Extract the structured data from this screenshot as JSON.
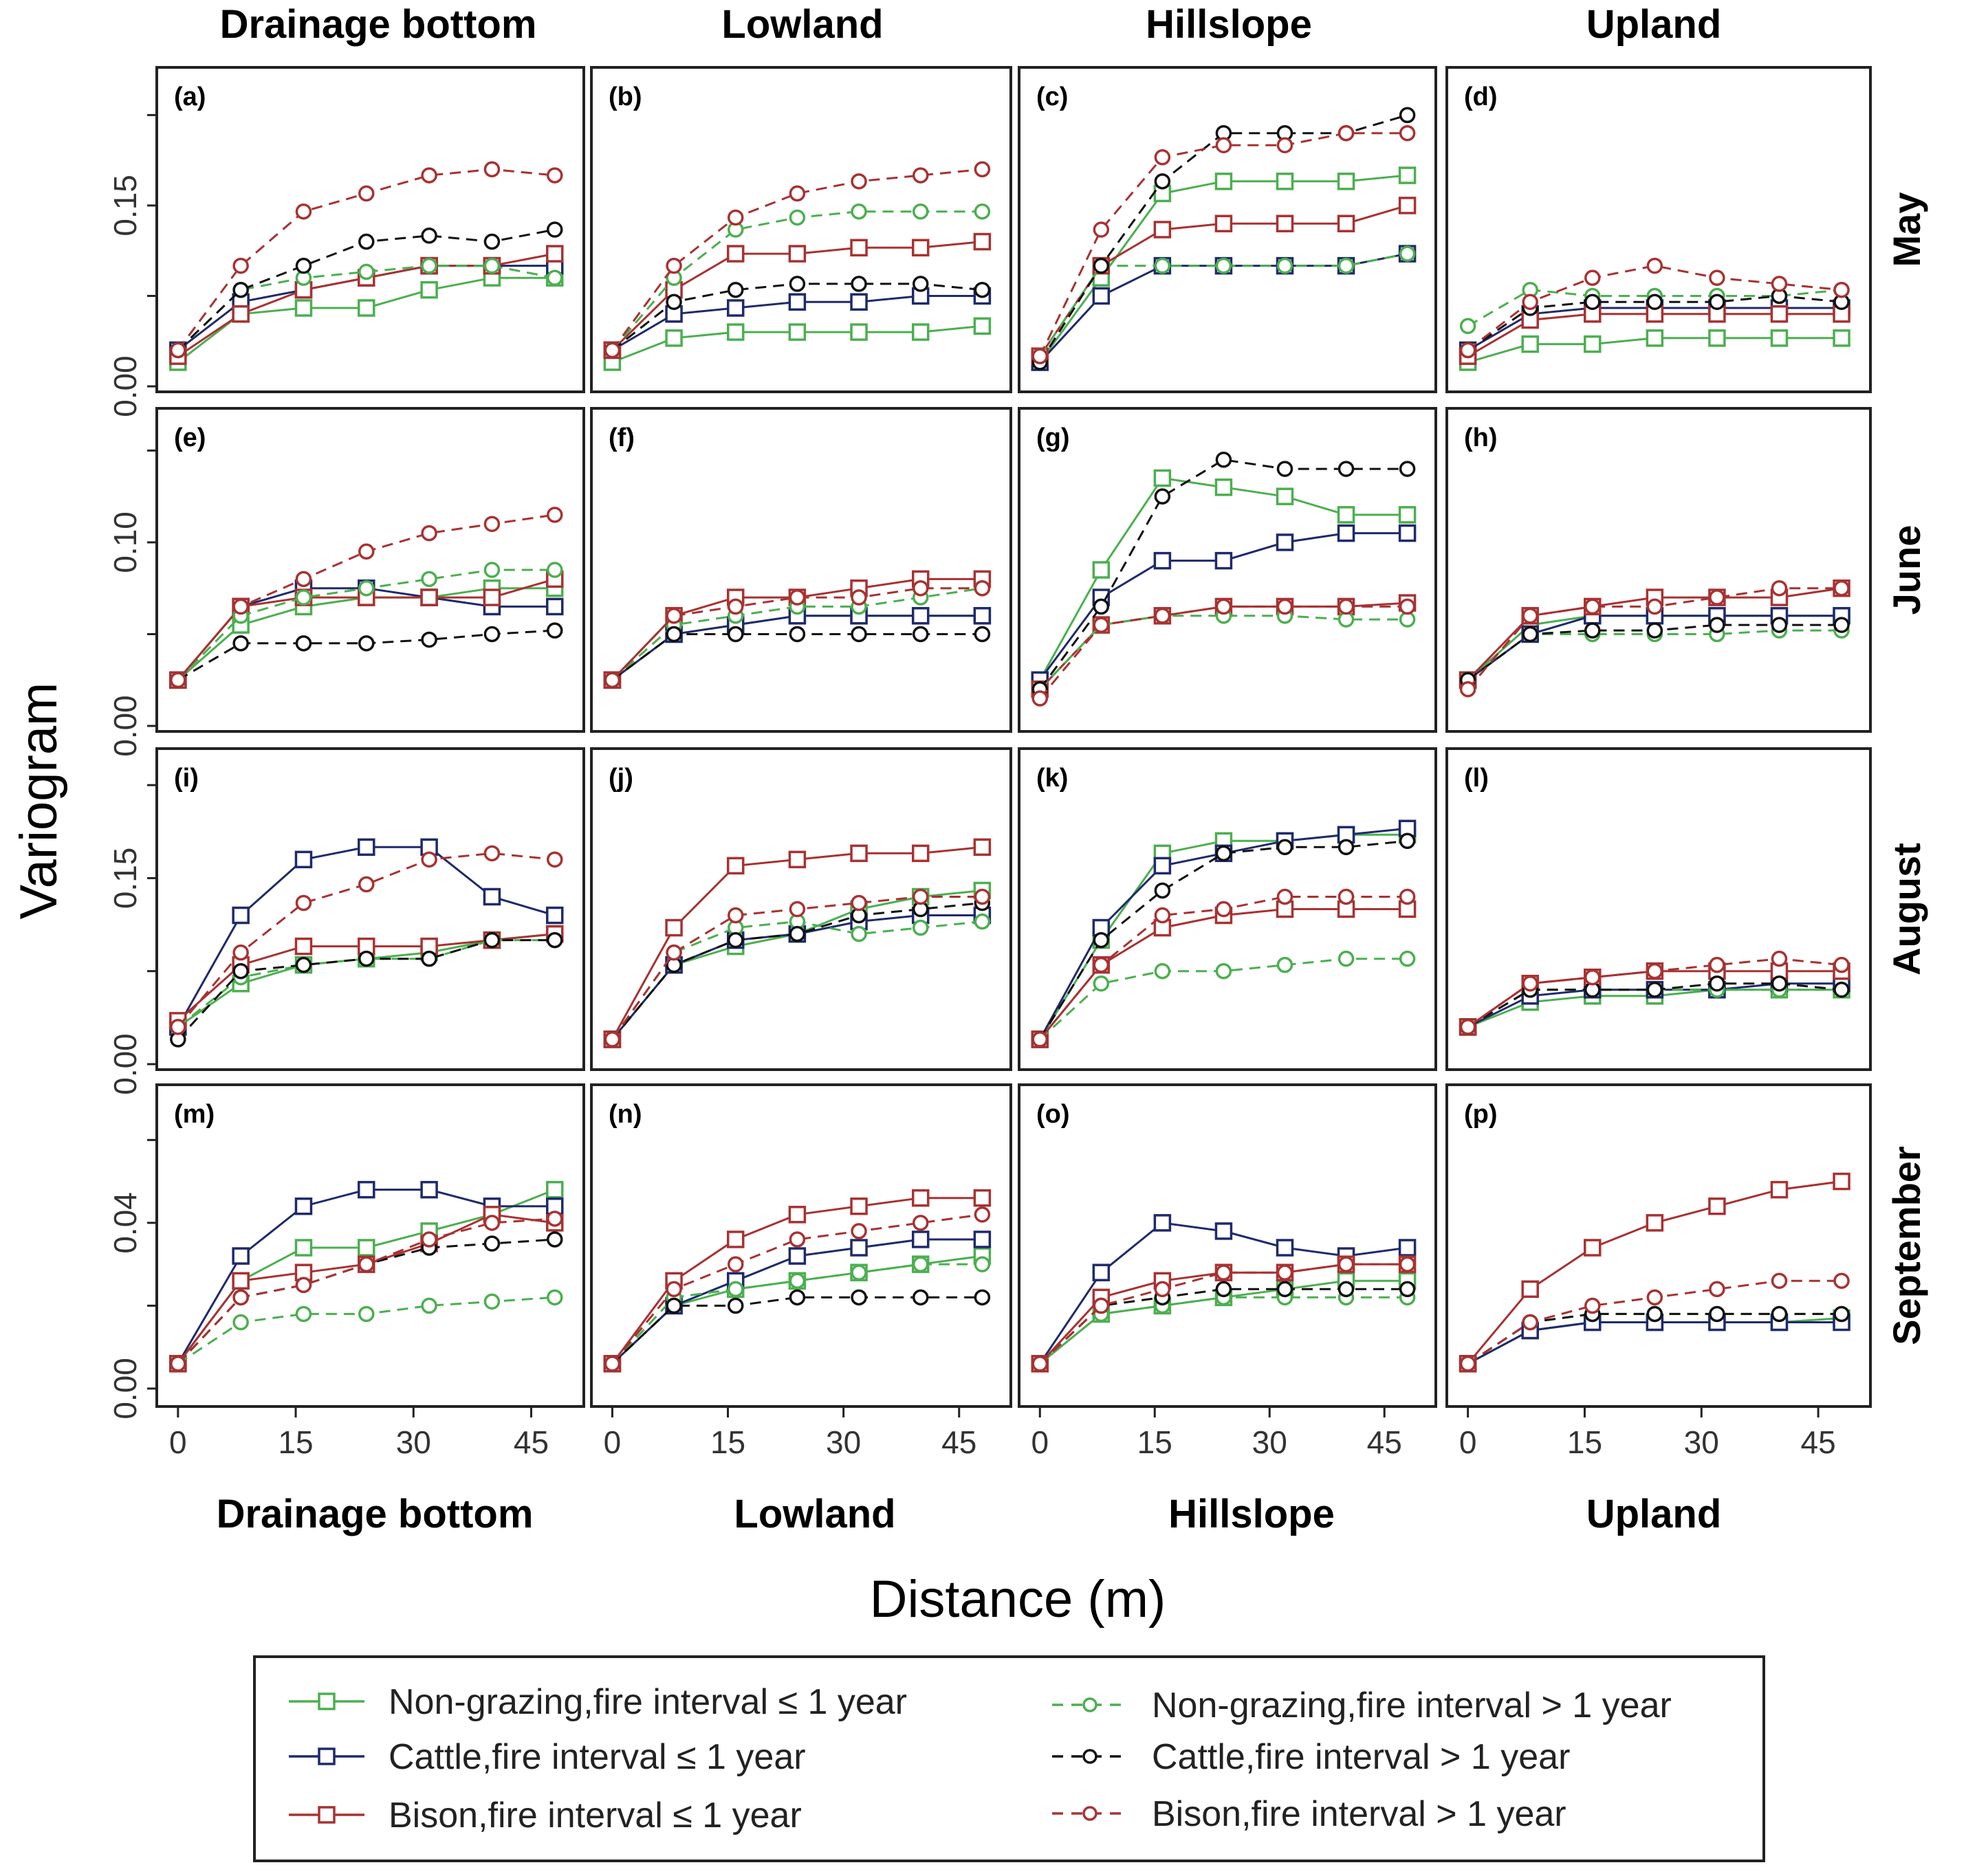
{
  "chart_data": {
    "type": "line",
    "title": "",
    "xlabel": "Distance (m)",
    "ylabel": "Variogram",
    "xlim": [
      -2,
      51
    ],
    "x_ticks": [
      "0",
      "15",
      "30",
      "45"
    ],
    "columns": [
      "Drainage bottom",
      "Lowland",
      "Hillslope",
      "Upland"
    ],
    "bottom_labels": [
      "Drainage bottom",
      "Lowland",
      "Hillslope",
      "Upland"
    ],
    "rows": [
      {
        "label": "May",
        "ylim": [
          0,
          0.26
        ],
        "y_ticks": [
          "0.00",
          "0.15"
        ]
      },
      {
        "label": "June",
        "ylim": [
          0,
          0.17
        ],
        "y_ticks": [
          "0.00",
          "0.10"
        ]
      },
      {
        "label": "August",
        "ylim": [
          0,
          0.25
        ],
        "y_ticks": [
          "0.00",
          "0.15"
        ]
      },
      {
        "label": "September",
        "ylim": [
          -0.003,
          0.072
        ],
        "y_ticks": [
          "0.00",
          "0.04"
        ]
      }
    ],
    "series_meta": [
      {
        "name": "Non-grazing,fire interval  ≤  1 year",
        "color": "#4caf50",
        "dash": "solid",
        "marker": "square"
      },
      {
        "name": "Cattle,fire interval  ≤  1 year",
        "color": "#1f2a6b",
        "dash": "solid",
        "marker": "square"
      },
      {
        "name": "Bison,fire interval  ≤  1 year",
        "color": "#a83232",
        "dash": "solid",
        "marker": "square"
      },
      {
        "name": "Non-grazing,fire interval > 1 year",
        "color": "#4caf50",
        "dash": "dashed",
        "marker": "circle"
      },
      {
        "name": "Cattle,fire interval > 1 year",
        "color": "#111111",
        "dash": "dashed",
        "marker": "circle"
      },
      {
        "name": "Bison,fire interval > 1 year",
        "color": "#a83232",
        "dash": "dashed",
        "marker": "circle"
      }
    ],
    "x": [
      0,
      8,
      16,
      24,
      32,
      40,
      48
    ],
    "panels": [
      {
        "label": "(a)",
        "series": [
          [
            0.02,
            0.06,
            0.065,
            0.065,
            0.08,
            0.09,
            0.09
          ],
          [
            0.03,
            0.07,
            0.08,
            0.09,
            0.1,
            0.1,
            0.1
          ],
          [
            0.025,
            0.06,
            0.08,
            0.09,
            0.1,
            0.1,
            0.11
          ],
          [
            0.03,
            0.08,
            0.09,
            0.095,
            0.1,
            0.1,
            0.09
          ],
          [
            0.03,
            0.08,
            0.1,
            0.12,
            0.125,
            0.12,
            0.13
          ],
          [
            0.03,
            0.1,
            0.145,
            0.16,
            0.175,
            0.18,
            0.175
          ]
        ]
      },
      {
        "label": "(b)",
        "series": [
          [
            0.02,
            0.04,
            0.045,
            0.045,
            0.045,
            0.045,
            0.05
          ],
          [
            0.03,
            0.06,
            0.065,
            0.07,
            0.07,
            0.075,
            0.075
          ],
          [
            0.03,
            0.08,
            0.11,
            0.11,
            0.115,
            0.115,
            0.12
          ],
          [
            0.03,
            0.09,
            0.13,
            0.14,
            0.145,
            0.145,
            0.145
          ],
          [
            0.03,
            0.07,
            0.08,
            0.085,
            0.085,
            0.085,
            0.08
          ],
          [
            0.03,
            0.1,
            0.14,
            0.16,
            0.17,
            0.175,
            0.18
          ]
        ]
      },
      {
        "label": "(c)",
        "series": [
          [
            0.02,
            0.09,
            0.16,
            0.17,
            0.17,
            0.17,
            0.175
          ],
          [
            0.02,
            0.075,
            0.1,
            0.1,
            0.1,
            0.1,
            0.11
          ],
          [
            0.025,
            0.1,
            0.13,
            0.135,
            0.135,
            0.135,
            0.15
          ],
          [
            0.025,
            0.1,
            0.1,
            0.1,
            0.1,
            0.1,
            0.11
          ],
          [
            0.02,
            0.1,
            0.17,
            0.21,
            0.21,
            0.21,
            0.225
          ],
          [
            0.025,
            0.13,
            0.19,
            0.2,
            0.2,
            0.21,
            0.21
          ]
        ]
      },
      {
        "label": "(d)",
        "series": [
          [
            0.02,
            0.035,
            0.035,
            0.04,
            0.04,
            0.04,
            0.04
          ],
          [
            0.03,
            0.06,
            0.065,
            0.065,
            0.065,
            0.065,
            0.065
          ],
          [
            0.025,
            0.055,
            0.06,
            0.06,
            0.06,
            0.06,
            0.06
          ],
          [
            0.05,
            0.08,
            0.075,
            0.075,
            0.075,
            0.075,
            0.08
          ],
          [
            0.03,
            0.065,
            0.07,
            0.07,
            0.07,
            0.075,
            0.07
          ],
          [
            0.03,
            0.07,
            0.09,
            0.1,
            0.09,
            0.085,
            0.08
          ]
        ]
      },
      {
        "label": "(e)",
        "series": [
          [
            0.025,
            0.055,
            0.065,
            0.07,
            0.07,
            0.075,
            0.075
          ],
          [
            0.025,
            0.065,
            0.075,
            0.075,
            0.07,
            0.065,
            0.065
          ],
          [
            0.025,
            0.065,
            0.07,
            0.07,
            0.07,
            0.07,
            0.08
          ],
          [
            0.025,
            0.06,
            0.07,
            0.075,
            0.08,
            0.085,
            0.085
          ],
          [
            0.025,
            0.045,
            0.045,
            0.045,
            0.047,
            0.05,
            0.052
          ],
          [
            0.025,
            0.065,
            0.08,
            0.095,
            0.105,
            0.11,
            0.115
          ]
        ]
      },
      {
        "label": "(f)",
        "series": [
          [
            0.025,
            0.05,
            0.055,
            0.06,
            0.06,
            0.06,
            0.06
          ],
          [
            0.025,
            0.05,
            0.055,
            0.06,
            0.06,
            0.06,
            0.06
          ],
          [
            0.025,
            0.06,
            0.07,
            0.07,
            0.075,
            0.08,
            0.08
          ],
          [
            0.025,
            0.055,
            0.06,
            0.065,
            0.065,
            0.07,
            0.075
          ],
          [
            0.025,
            0.05,
            0.05,
            0.05,
            0.05,
            0.05,
            0.05
          ],
          [
            0.025,
            0.06,
            0.065,
            0.07,
            0.07,
            0.075,
            0.075
          ]
        ]
      },
      {
        "label": "(g)",
        "series": [
          [
            0.025,
            0.085,
            0.135,
            0.13,
            0.125,
            0.115,
            0.115
          ],
          [
            0.025,
            0.07,
            0.09,
            0.09,
            0.1,
            0.105,
            0.105
          ],
          [
            0.02,
            0.055,
            0.06,
            0.065,
            0.065,
            0.065,
            0.067
          ],
          [
            0.02,
            0.055,
            0.06,
            0.06,
            0.06,
            0.058,
            0.058
          ],
          [
            0.02,
            0.065,
            0.125,
            0.145,
            0.14,
            0.14,
            0.14
          ],
          [
            0.015,
            0.055,
            0.06,
            0.065,
            0.065,
            0.065,
            0.065
          ]
        ]
      },
      {
        "label": "(h)",
        "series": [
          [
            0.025,
            0.055,
            0.06,
            0.06,
            0.06,
            0.06,
            0.06
          ],
          [
            0.025,
            0.05,
            0.06,
            0.06,
            0.06,
            0.06,
            0.06
          ],
          [
            0.025,
            0.06,
            0.065,
            0.07,
            0.07,
            0.07,
            0.075
          ],
          [
            0.025,
            0.05,
            0.05,
            0.05,
            0.05,
            0.052,
            0.052
          ],
          [
            0.025,
            0.05,
            0.052,
            0.052,
            0.055,
            0.055,
            0.055
          ],
          [
            0.02,
            0.06,
            0.065,
            0.065,
            0.07,
            0.075,
            0.075
          ]
        ]
      },
      {
        "label": "(i)",
        "series": [
          [
            0.03,
            0.065,
            0.08,
            0.085,
            0.09,
            0.1,
            0.105
          ],
          [
            0.03,
            0.12,
            0.165,
            0.175,
            0.175,
            0.135,
            0.12
          ],
          [
            0.035,
            0.08,
            0.095,
            0.095,
            0.095,
            0.1,
            0.105
          ],
          [
            0.03,
            0.07,
            0.08,
            0.085,
            0.085,
            0.1,
            0.1
          ],
          [
            0.02,
            0.075,
            0.08,
            0.085,
            0.085,
            0.1,
            0.1
          ],
          [
            0.03,
            0.09,
            0.13,
            0.145,
            0.165,
            0.17,
            0.165
          ]
        ]
      },
      {
        "label": "(j)",
        "series": [
          [
            0.02,
            0.08,
            0.095,
            0.105,
            0.125,
            0.135,
            0.14
          ],
          [
            0.02,
            0.08,
            0.1,
            0.105,
            0.115,
            0.12,
            0.12
          ],
          [
            0.02,
            0.11,
            0.16,
            0.165,
            0.17,
            0.17,
            0.175
          ],
          [
            0.02,
            0.09,
            0.11,
            0.115,
            0.105,
            0.11,
            0.115
          ],
          [
            0.02,
            0.08,
            0.1,
            0.105,
            0.12,
            0.125,
            0.13
          ],
          [
            0.02,
            0.09,
            0.12,
            0.125,
            0.13,
            0.135,
            0.135
          ]
        ]
      },
      {
        "label": "(k)",
        "series": [
          [
            0.02,
            0.1,
            0.17,
            0.18,
            0.18,
            0.185,
            0.185
          ],
          [
            0.02,
            0.11,
            0.16,
            0.17,
            0.18,
            0.185,
            0.19
          ],
          [
            0.02,
            0.08,
            0.11,
            0.12,
            0.125,
            0.125,
            0.125
          ],
          [
            0.02,
            0.065,
            0.075,
            0.075,
            0.08,
            0.085,
            0.085
          ],
          [
            0.02,
            0.1,
            0.14,
            0.17,
            0.175,
            0.175,
            0.18
          ],
          [
            0.02,
            0.08,
            0.12,
            0.125,
            0.135,
            0.135,
            0.135
          ]
        ]
      },
      {
        "label": "(l)",
        "series": [
          [
            0.03,
            0.05,
            0.055,
            0.055,
            0.06,
            0.06,
            0.06
          ],
          [
            0.03,
            0.055,
            0.06,
            0.06,
            0.06,
            0.065,
            0.065
          ],
          [
            0.03,
            0.065,
            0.07,
            0.075,
            0.075,
            0.075,
            0.075
          ],
          [
            0.03,
            0.06,
            0.06,
            0.06,
            0.06,
            0.06,
            0.06
          ],
          [
            0.03,
            0.06,
            0.06,
            0.06,
            0.065,
            0.065,
            0.06
          ],
          [
            0.03,
            0.065,
            0.07,
            0.075,
            0.08,
            0.085,
            0.08
          ]
        ]
      },
      {
        "label": "(m)",
        "series": [
          [
            0.006,
            0.026,
            0.034,
            0.034,
            0.038,
            0.042,
            0.048
          ],
          [
            0.006,
            0.032,
            0.044,
            0.048,
            0.048,
            0.044,
            0.044
          ],
          [
            0.006,
            0.026,
            0.028,
            0.03,
            0.035,
            0.042,
            0.04
          ],
          [
            0.006,
            0.016,
            0.018,
            0.018,
            0.02,
            0.021,
            0.022
          ],
          [
            0.006,
            0.022,
            0.025,
            0.03,
            0.034,
            0.035,
            0.036
          ],
          [
            0.006,
            0.022,
            0.025,
            0.03,
            0.036,
            0.04,
            0.041
          ]
        ]
      },
      {
        "label": "(n)",
        "series": [
          [
            0.006,
            0.02,
            0.024,
            0.026,
            0.028,
            0.03,
            0.032
          ],
          [
            0.006,
            0.02,
            0.026,
            0.032,
            0.034,
            0.036,
            0.036
          ],
          [
            0.006,
            0.026,
            0.036,
            0.042,
            0.044,
            0.046,
            0.046
          ],
          [
            0.006,
            0.022,
            0.024,
            0.026,
            0.028,
            0.03,
            0.03
          ],
          [
            0.006,
            0.02,
            0.02,
            0.022,
            0.022,
            0.022,
            0.022
          ],
          [
            0.006,
            0.024,
            0.03,
            0.036,
            0.038,
            0.04,
            0.042
          ]
        ]
      },
      {
        "label": "(o)",
        "series": [
          [
            0.006,
            0.018,
            0.02,
            0.022,
            0.024,
            0.026,
            0.026
          ],
          [
            0.006,
            0.028,
            0.04,
            0.038,
            0.034,
            0.032,
            0.034
          ],
          [
            0.006,
            0.022,
            0.026,
            0.028,
            0.028,
            0.03,
            0.03
          ],
          [
            0.006,
            0.018,
            0.02,
            0.022,
            0.022,
            0.022,
            0.022
          ],
          [
            0.006,
            0.02,
            0.022,
            0.024,
            0.024,
            0.024,
            0.024
          ],
          [
            0.006,
            0.02,
            0.024,
            0.028,
            0.028,
            0.03,
            0.03
          ]
        ]
      },
      {
        "label": "(p)",
        "series": [
          [
            0.006,
            0.014,
            0.016,
            0.016,
            0.016,
            0.016,
            0.017
          ],
          [
            0.006,
            0.014,
            0.016,
            0.016,
            0.016,
            0.016,
            0.016
          ],
          [
            0.006,
            0.024,
            0.034,
            0.04,
            0.044,
            0.048,
            0.05
          ],
          [
            0.006,
            0.016,
            0.018,
            0.018,
            0.018,
            0.018,
            0.018
          ],
          [
            0.006,
            0.016,
            0.018,
            0.018,
            0.018,
            0.018,
            0.018
          ],
          [
            0.006,
            0.016,
            0.02,
            0.022,
            0.024,
            0.026,
            0.026
          ]
        ]
      }
    ]
  }
}
